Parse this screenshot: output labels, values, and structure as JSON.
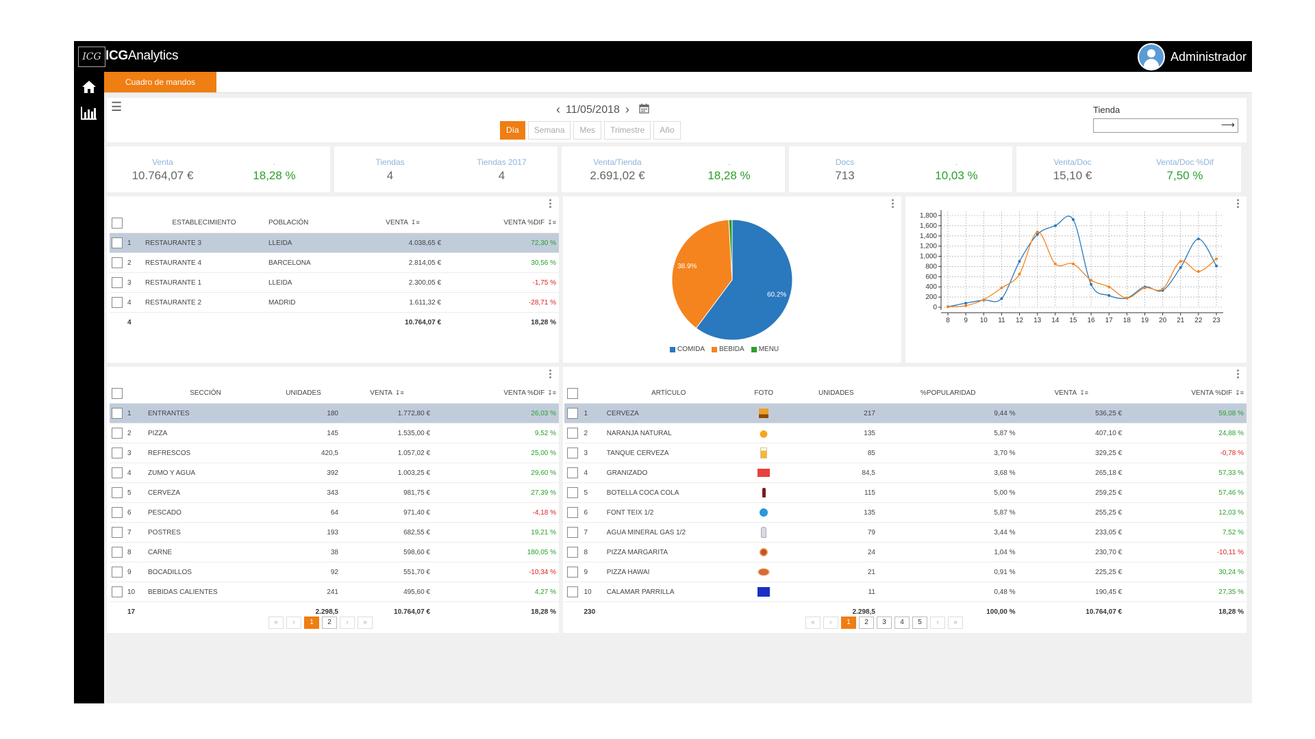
{
  "app": {
    "logo_box": "ICG",
    "logo_brand": "ICG",
    "logo_product": "Analytics",
    "user_name": "Administrador"
  },
  "icons": {
    "home": "home-icon",
    "reports": "bar-chart-icon",
    "menu": "hamburger-icon",
    "calendar": "calendar-icon",
    "user": "user-avatar-icon",
    "store_go": "arrow-right-icon",
    "side_toggle": "collapse-panel-icon"
  },
  "colors": {
    "accent": "#ef7e13",
    "positive": "#2aa02a",
    "negative": "#e02020",
    "kpi_label": "#8bb4dc",
    "comida": "#2a78be",
    "bebida": "#f5841f",
    "menu": "#2ca02c"
  },
  "tabs": [
    {
      "label": "Cuadro de mandos",
      "active": true
    }
  ],
  "toolbar": {
    "date": "11/05/2018",
    "periods": [
      {
        "label": "Día",
        "active": true
      },
      {
        "label": "Semana"
      },
      {
        "label": "Mes"
      },
      {
        "label": "Trimestre"
      },
      {
        "label": "Año"
      }
    ],
    "store_label": "Tienda",
    "store_value": ""
  },
  "kpis": [
    {
      "label1": "Venta",
      "value1": "10.764,07 €",
      "label2": ".",
      "value2": "18,28 %",
      "value2_positive": true
    },
    {
      "label1": "Tiendas",
      "value1": "4",
      "label2": "Tiendas 2017",
      "value2": "4",
      "value2_positive": false
    },
    {
      "label1": "Venta/Tienda",
      "value1": "2.691,02 €",
      "label2": ".",
      "value2": "18,28 %",
      "value2_positive": true
    },
    {
      "label1": "Docs",
      "value1": "713",
      "label2": ".",
      "value2": "10,03 %",
      "value2_positive": true
    },
    {
      "label1": "Venta/Doc",
      "value1": "15,10 €",
      "label2": "Venta/Doc %Dif",
      "value2": "7,50 %",
      "value2_positive": true
    }
  ],
  "stores_table": {
    "headers": {
      "establecimiento": "ESTABLECIMIENTO",
      "poblacion": "POBLACIÓN",
      "venta": "VENTA",
      "venta_dif": "VENTA %DIF"
    },
    "rows": [
      {
        "n": "1",
        "name": "RESTAURANTE 3",
        "city": "LLEIDA",
        "venta": "4.038,65 €",
        "dif": "72,30 %",
        "positive": true,
        "selected": true
      },
      {
        "n": "2",
        "name": "RESTAURANTE 4",
        "city": "BARCELONA",
        "venta": "2.814,05 €",
        "dif": "30,56 %",
        "positive": true
      },
      {
        "n": "3",
        "name": "RESTAURANTE 1",
        "city": "LLEIDA",
        "venta": "2.300,05 €",
        "dif": "-1,75 %",
        "positive": false
      },
      {
        "n": "4",
        "name": "RESTAURANTE 2",
        "city": "MADRID",
        "venta": "1.611,32 €",
        "dif": "-28,71 %",
        "positive": false
      }
    ],
    "total": {
      "count": "4",
      "venta": "10.764,07 €",
      "dif": "18,28 %"
    }
  },
  "pie_chart": {
    "chart_data": {
      "type": "pie",
      "slices": [
        {
          "label": "COMIDA",
          "value": 60.2,
          "display": "60.2%",
          "color": "#2a78be"
        },
        {
          "label": "BEBIDA",
          "value": 38.9,
          "display": "38.9%",
          "color": "#f5841f"
        },
        {
          "label": "MENU",
          "value": 0.9,
          "display": "",
          "color": "#2ca02c"
        }
      ]
    }
  },
  "line_chart": {
    "chart_data": {
      "type": "line",
      "x": [
        8,
        9,
        10,
        11,
        12,
        13,
        14,
        15,
        16,
        17,
        18,
        19,
        20,
        21,
        22,
        23
      ],
      "ylim": [
        0,
        1800
      ],
      "yticks": [
        "0",
        "200",
        "400",
        "600",
        "800",
        "1,000",
        "1,200",
        "1,400",
        "1,600",
        "1,800"
      ],
      "ytick_values": [
        0,
        200,
        400,
        600,
        800,
        1000,
        1200,
        1400,
        1600,
        1800
      ],
      "grid": true,
      "series": [
        {
          "color": "#2a78be",
          "values": [
            10,
            80,
            140,
            170,
            900,
            1430,
            1600,
            1720,
            450,
            230,
            180,
            400,
            330,
            780,
            1340,
            810
          ]
        },
        {
          "color": "#f5841f",
          "values": [
            10,
            30,
            150,
            380,
            650,
            1480,
            850,
            850,
            530,
            400,
            180,
            380,
            360,
            900,
            700,
            950
          ]
        }
      ]
    }
  },
  "sections_table": {
    "headers": {
      "seccion": "SECCIÓN",
      "unidades": "UNIDADES",
      "venta": "VENTA",
      "venta_dif": "VENTA %DIF"
    },
    "rows": [
      {
        "n": "1",
        "name": "ENTRANTES",
        "units": "180",
        "venta": "1.772,80 €",
        "dif": "26,03 %",
        "positive": true,
        "selected": true
      },
      {
        "n": "2",
        "name": "PIZZA",
        "units": "145",
        "venta": "1.535,00 €",
        "dif": "9,52 %",
        "positive": true
      },
      {
        "n": "3",
        "name": "REFRESCOS",
        "units": "420,5",
        "venta": "1.057,02 €",
        "dif": "25,00 %",
        "positive": true
      },
      {
        "n": "4",
        "name": "ZUMO Y AGUA",
        "units": "392",
        "venta": "1.003,25 €",
        "dif": "29,60 %",
        "positive": true
      },
      {
        "n": "5",
        "name": "CERVEZA",
        "units": "343",
        "venta": "981,75 €",
        "dif": "27,39 %",
        "positive": true
      },
      {
        "n": "6",
        "name": "PESCADO",
        "units": "64",
        "venta": "971,40 €",
        "dif": "-4,18 %",
        "positive": false
      },
      {
        "n": "7",
        "name": "POSTRES",
        "units": "193",
        "venta": "682,55 €",
        "dif": "19,21 %",
        "positive": true
      },
      {
        "n": "8",
        "name": "CARNE",
        "units": "38",
        "venta": "598,60 €",
        "dif": "180,05 %",
        "positive": true
      },
      {
        "n": "9",
        "name": "BOCADILLOS",
        "units": "92",
        "venta": "551,70 €",
        "dif": "-10,34 %",
        "positive": false
      },
      {
        "n": "10",
        "name": "BEBIDAS CALIENTES",
        "units": "241",
        "venta": "495,60 €",
        "dif": "4,27 %",
        "positive": true
      }
    ],
    "total": {
      "count": "17",
      "units": "2.298,5",
      "venta": "10.764,07 €",
      "dif": "18,28 %"
    },
    "pager": {
      "first": "«",
      "prev": "‹",
      "pages": [
        "1",
        "2"
      ],
      "active": "1",
      "next": "›",
      "last": "»"
    }
  },
  "articles_table": {
    "headers": {
      "articulo": "ARTÍCULO",
      "foto": "FOTO",
      "unidades": "UNIDADES",
      "popularidad": "%POPULARIDAD",
      "venta": "VENTA",
      "venta_dif": "VENTA %DIF"
    },
    "rows": [
      {
        "n": "1",
        "name": "CERVEZA",
        "foto": "beer-photo",
        "units": "217",
        "pop": "9,44 %",
        "venta": "536,25 €",
        "dif": "59,08 %",
        "positive": true,
        "selected": true
      },
      {
        "n": "2",
        "name": "NARANJA NATURAL",
        "foto": "orange-juice-photo",
        "units": "135",
        "pop": "5,87 %",
        "venta": "407,10 €",
        "dif": "24,88 %",
        "positive": true
      },
      {
        "n": "3",
        "name": "TANQUE CERVEZA",
        "foto": "beer-glass-photo",
        "units": "85",
        "pop": "3,70 %",
        "venta": "329,25 €",
        "dif": "-0,78 %",
        "positive": false
      },
      {
        "n": "4",
        "name": "GRANIZADO",
        "foto": "granizado-photo",
        "units": "84,5",
        "pop": "3,68 %",
        "venta": "265,18 €",
        "dif": "57,33 %",
        "positive": true
      },
      {
        "n": "5",
        "name": "BOTELLA COCA COLA",
        "foto": "cola-bottle-photo",
        "units": "115",
        "pop": "5,00 %",
        "venta": "259,25 €",
        "dif": "57,46 %",
        "positive": true
      },
      {
        "n": "6",
        "name": "FONT TEIX 1/2",
        "foto": "water-bottle-photo",
        "units": "135",
        "pop": "5,87 %",
        "venta": "255,25 €",
        "dif": "12,03 %",
        "positive": true
      },
      {
        "n": "7",
        "name": "AGUA MINERAL GAS 1/2",
        "foto": "sparkling-water-photo",
        "units": "79",
        "pop": "3,44 %",
        "venta": "233,05 €",
        "dif": "7,52 %",
        "positive": true
      },
      {
        "n": "8",
        "name": "PIZZA MARGARITA",
        "foto": "pizza-photo",
        "units": "24",
        "pop": "1,04 %",
        "venta": "230,70 €",
        "dif": "-10,11 %",
        "positive": false
      },
      {
        "n": "9",
        "name": "PIZZA HAWAI",
        "foto": "pizza-hawai-photo",
        "units": "21",
        "pop": "0,91 %",
        "venta": "225,25 €",
        "dif": "30,24 %",
        "positive": true
      },
      {
        "n": "10",
        "name": "CALAMAR PARRILLA",
        "foto": "calamar-photo",
        "units": "11",
        "pop": "0,48 %",
        "venta": "190,45 €",
        "dif": "27,35 %",
        "positive": true
      }
    ],
    "total": {
      "count": "230",
      "units": "2.298,5",
      "pop": "100,00 %",
      "venta": "10.764,07 €",
      "dif": "18,28 %"
    },
    "pager": {
      "first": "«",
      "prev": "‹",
      "pages": [
        "1",
        "2",
        "3",
        "4",
        "5"
      ],
      "active": "1",
      "next": "›",
      "last": "»"
    }
  }
}
